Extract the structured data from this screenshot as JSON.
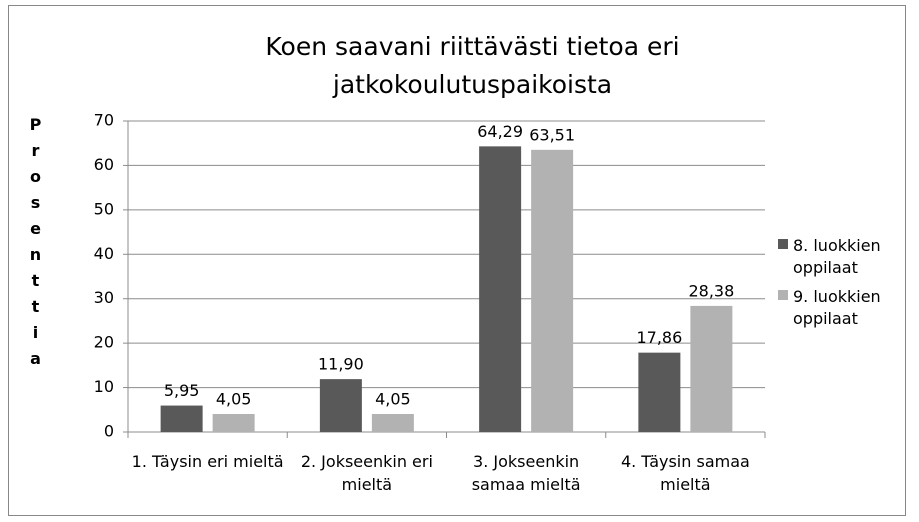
{
  "chart_data": {
    "type": "bar",
    "title": "Koen saavani riittävästi tietoa eri jatkokoulutuspaikoista",
    "y_label": "Prosenttia",
    "categories": [
      "1. Täysin eri mieltä",
      "2. Jokseenkin eri mieltä",
      "3. Jokseenkin samaa mieltä",
      "4. Täysin samaa mieltä"
    ],
    "series": [
      {
        "name": "8. luokkien oppilaat",
        "color": "#595959",
        "values": [
          5.95,
          11.9,
          64.29,
          17.86
        ],
        "value_labels": [
          "5,95",
          "11,90",
          "64,29",
          "17,86"
        ]
      },
      {
        "name": "9. luokkien oppilaat",
        "color": "#b2b2b2",
        "values": [
          4.05,
          4.05,
          63.51,
          28.38
        ],
        "value_labels": [
          "4,05",
          "4,05",
          "63,51",
          "28,38"
        ]
      }
    ],
    "ylim": [
      0,
      70
    ],
    "yticks": [
      0,
      10,
      20,
      30,
      40,
      50,
      60,
      70
    ],
    "grid": true,
    "legend": "right"
  }
}
